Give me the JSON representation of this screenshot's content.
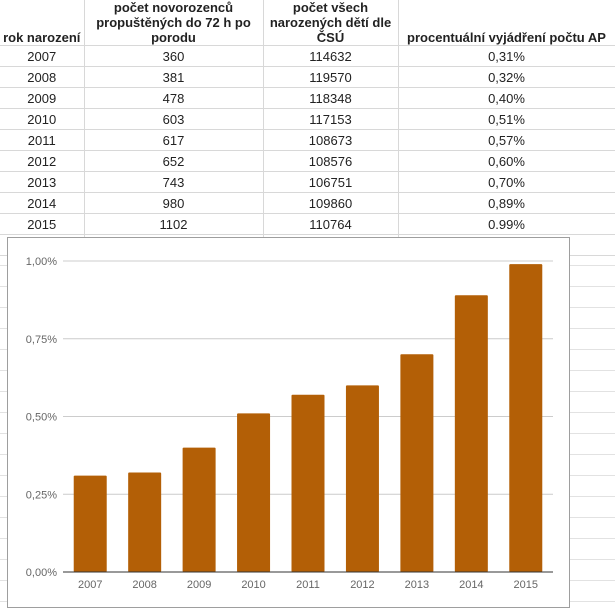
{
  "table": {
    "headers": [
      "rok narození",
      "počet novorozenců propuštěných do 72 h po porodu",
      "počet všech narozených dětí dle ČSÚ",
      "procentuální vyjádření počtu AP"
    ],
    "rows": [
      [
        "2007",
        "360",
        "114632",
        "0,31%"
      ],
      [
        "2008",
        "381",
        "119570",
        "0,32%"
      ],
      [
        "2009",
        "478",
        "118348",
        "0,40%"
      ],
      [
        "2010",
        "603",
        "117153",
        "0,51%"
      ],
      [
        "2011",
        "617",
        "108673",
        "0,57%"
      ],
      [
        "2012",
        "652",
        "108576",
        "0,60%"
      ],
      [
        "2013",
        "743",
        "106751",
        "0,70%"
      ],
      [
        "2014",
        "980",
        "109860",
        "0,89%"
      ],
      [
        "2015",
        "1102",
        "110764",
        "0.99%"
      ]
    ]
  },
  "chart_data": {
    "type": "bar",
    "categories": [
      "2007",
      "2008",
      "2009",
      "2010",
      "2011",
      "2012",
      "2013",
      "2014",
      "2015"
    ],
    "values": [
      0.31,
      0.32,
      0.4,
      0.51,
      0.57,
      0.6,
      0.7,
      0.89,
      0.99
    ],
    "title": "",
    "xlabel": "",
    "ylabel": "",
    "ylim": [
      0,
      1.0
    ],
    "yticks": [
      "0,00%",
      "0,25%",
      "0,50%",
      "0,75%",
      "1,00%"
    ],
    "grid": true,
    "bar_color": "#b35f06"
  }
}
